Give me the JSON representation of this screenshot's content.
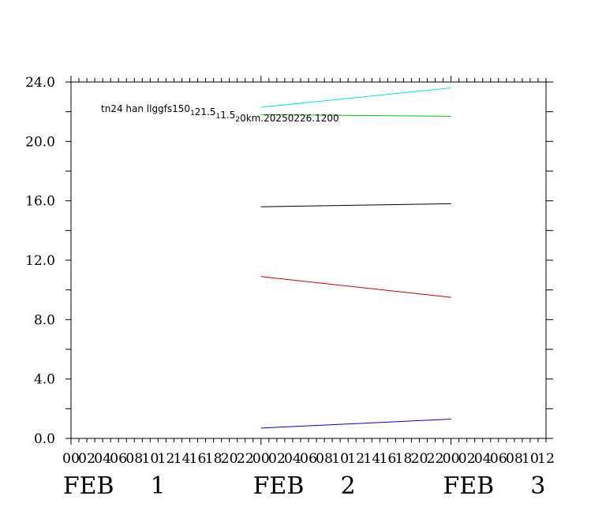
{
  "chart_data": {
    "type": "line",
    "title": "tn24 han llggfs150 1 21.5 1 1.5 2 0km.20250226.1200",
    "title_parts": [
      {
        "text": "tn24 han llggfs150",
        "sub": false
      },
      {
        "text": "1",
        "sub": true
      },
      {
        "text": "21.5",
        "sub": false
      },
      {
        "text": "1",
        "sub": true
      },
      {
        "text": "1.5",
        "sub": false
      },
      {
        "text": "2",
        "sub": true
      },
      {
        "text": "0km.20250226.1200",
        "sub": false
      }
    ],
    "ylim": [
      0,
      24
    ],
    "yticks": [
      {
        "value": 0,
        "label": "0.0"
      },
      {
        "value": 4,
        "label": "4.0"
      },
      {
        "value": 8,
        "label": "8.0"
      },
      {
        "value": 12,
        "label": "12.0"
      },
      {
        "value": 16,
        "label": "16.0"
      },
      {
        "value": 20,
        "label": "20.0"
      },
      {
        "value": 24,
        "label": "24.0"
      }
    ],
    "xlim_hours": [
      0,
      60
    ],
    "xtick_labels": [
      "00",
      "02",
      "04",
      "06",
      "08",
      "10",
      "12",
      "14",
      "16",
      "18",
      "20",
      "22",
      "00",
      "02",
      "04",
      "06",
      "08",
      "10",
      "12",
      "14",
      "16",
      "18",
      "20",
      "22",
      "00",
      "02",
      "04",
      "06",
      "08",
      "10",
      "12"
    ],
    "date_labels": [
      {
        "text": "FEB 1",
        "month": "FEB",
        "day": "1",
        "hour": 6
      },
      {
        "text": "FEB 2",
        "month": "FEB",
        "day": "2",
        "hour": 30
      },
      {
        "text": "FEB 3",
        "month": "FEB",
        "day": "3",
        "hour": 54
      }
    ],
    "series": [
      {
        "color": "#00e5e5",
        "x": [
          24,
          48
        ],
        "y": [
          22.3,
          23.6
        ]
      },
      {
        "color": "#00cc00",
        "x": [
          24,
          48
        ],
        "y": [
          21.8,
          21.7
        ]
      },
      {
        "color": "#000000",
        "x": [
          24,
          48
        ],
        "y": [
          15.6,
          15.8
        ]
      },
      {
        "color": "#cc0000",
        "x": [
          24,
          48
        ],
        "y": [
          10.9,
          9.5
        ]
      },
      {
        "color": "#0000cc",
        "x": [
          24,
          48
        ],
        "y": [
          0.7,
          1.3
        ]
      }
    ]
  }
}
